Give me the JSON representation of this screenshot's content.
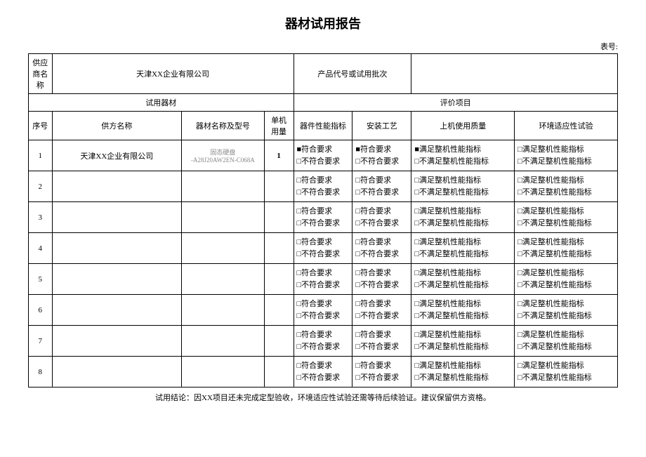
{
  "title": "器材试用报告",
  "table_no_label": "表号:",
  "header": {
    "supplier_label": "供应商名称",
    "supplier_value": "天津XX企业有限公司",
    "product_label": "产品代号或试用批次",
    "product_value": "",
    "trial_equip_label": "试用器材",
    "eval_label": "评价项目"
  },
  "columns": {
    "seq": "序号",
    "supplier": "供方名称",
    "model": "器材名称及型号",
    "qty": "单机用量",
    "perf": "器件性能指标",
    "install": "安装工艺",
    "machine": "上机使用质量",
    "env": "环境适应性试验"
  },
  "checkbox_text": {
    "conform": "符合要求",
    "not_conform": "不符合要求",
    "meet_machine": "满足整机性能指标",
    "not_meet_machine": "不满足整机性能指标"
  },
  "checkbox_symbols": {
    "checked": "■",
    "unchecked": "□"
  },
  "rows": [
    {
      "seq": "1",
      "supplier": "天津XX企业有限公司",
      "model_name": "固态硬盘",
      "model_code": "-A28J20AW2EN-C068A",
      "qty": "1",
      "perf_conform": true,
      "perf_not_conform": false,
      "install_conform": true,
      "install_not_conform": false,
      "machine_meet": true,
      "machine_not_meet": false,
      "env_meet": false,
      "env_not_meet": false
    },
    {
      "seq": "2",
      "supplier": "",
      "model_name": "",
      "model_code": "",
      "qty": "",
      "perf_conform": false,
      "perf_not_conform": false,
      "install_conform": false,
      "install_not_conform": false,
      "machine_meet": false,
      "machine_not_meet": false,
      "env_meet": false,
      "env_not_meet": false
    },
    {
      "seq": "3",
      "supplier": "",
      "model_name": "",
      "model_code": "",
      "qty": "",
      "perf_conform": false,
      "perf_not_conform": false,
      "install_conform": false,
      "install_not_conform": false,
      "machine_meet": false,
      "machine_not_meet": false,
      "env_meet": false,
      "env_not_meet": false
    },
    {
      "seq": "4",
      "supplier": "",
      "model_name": "",
      "model_code": "",
      "qty": "",
      "perf_conform": false,
      "perf_not_conform": false,
      "install_conform": false,
      "install_not_conform": false,
      "machine_meet": false,
      "machine_not_meet": false,
      "env_meet": false,
      "env_not_meet": false
    },
    {
      "seq": "5",
      "supplier": "",
      "model_name": "",
      "model_code": "",
      "qty": "",
      "perf_conform": false,
      "perf_not_conform": false,
      "install_conform": false,
      "install_not_conform": false,
      "machine_meet": false,
      "machine_not_meet": false,
      "env_meet": false,
      "env_not_meet": false
    },
    {
      "seq": "6",
      "supplier": "",
      "model_name": "",
      "model_code": "",
      "qty": "",
      "perf_conform": false,
      "perf_not_conform": false,
      "install_conform": false,
      "install_not_conform": false,
      "machine_meet": false,
      "machine_not_meet": false,
      "env_meet": false,
      "env_not_meet": false
    },
    {
      "seq": "7",
      "supplier": "",
      "model_name": "",
      "model_code": "",
      "qty": "",
      "perf_conform": false,
      "perf_not_conform": false,
      "install_conform": false,
      "install_not_conform": false,
      "machine_meet": false,
      "machine_not_meet": false,
      "env_meet": false,
      "env_not_meet": false
    },
    {
      "seq": "8",
      "supplier": "",
      "model_name": "",
      "model_code": "",
      "qty": "",
      "perf_conform": false,
      "perf_not_conform": false,
      "install_conform": false,
      "install_not_conform": false,
      "machine_meet": false,
      "machine_not_meet": false,
      "env_meet": false,
      "env_not_meet": false
    }
  ],
  "conclusion_label": "试用结论：",
  "conclusion_text": "因XX项目还未完成定型验收，环境适应性试验还需等待后续验证。建议保留供方资格。"
}
